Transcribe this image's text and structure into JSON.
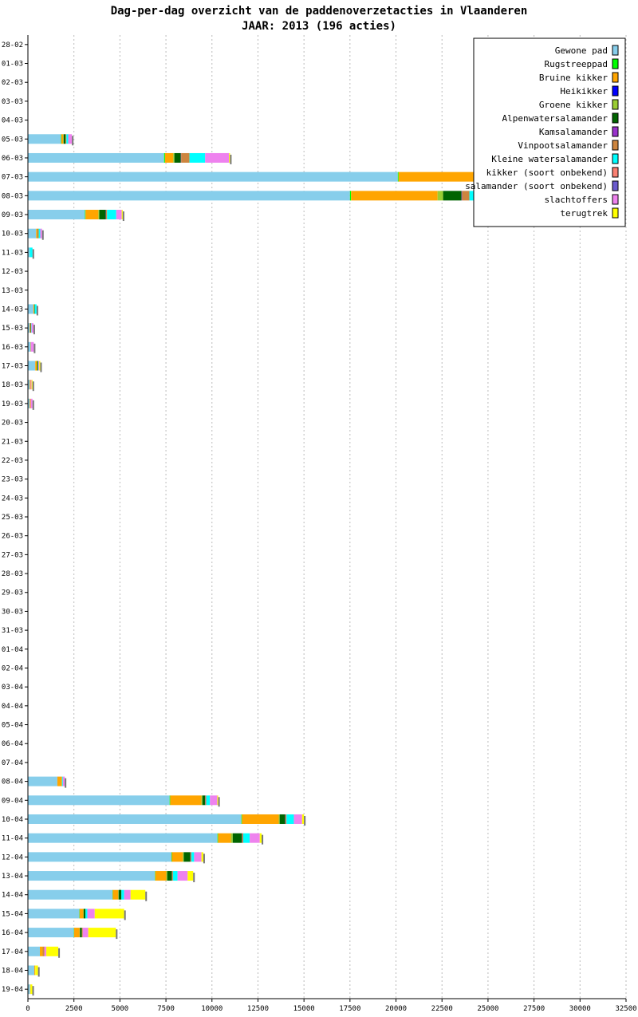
{
  "chart_data": {
    "type": "bar",
    "orientation": "horizontal",
    "stacked": true,
    "title": "Dag-per-dag overzicht van de paddenoverzetacties in Vlaanderen",
    "subtitle": "JAAR: 2013 (196 acties)",
    "xlabel": "",
    "ylabel": "",
    "xlim": [
      0,
      32500
    ],
    "x_ticks": [
      0,
      2500,
      5000,
      7500,
      10000,
      12500,
      15000,
      17500,
      20000,
      22500,
      25000,
      27500,
      30000,
      32500
    ],
    "grid": "vertical-dashed",
    "legend_position": "top-right",
    "categories": [
      "28-02",
      "01-03",
      "02-03",
      "03-03",
      "04-03",
      "05-03",
      "06-03",
      "07-03",
      "08-03",
      "09-03",
      "10-03",
      "11-03",
      "12-03",
      "13-03",
      "14-03",
      "15-03",
      "16-03",
      "17-03",
      "18-03",
      "19-03",
      "20-03",
      "21-03",
      "22-03",
      "23-03",
      "24-03",
      "25-03",
      "26-03",
      "27-03",
      "28-03",
      "29-03",
      "30-03",
      "31-03",
      "01-04",
      "02-04",
      "03-04",
      "04-04",
      "05-04",
      "06-04",
      "07-04",
      "08-04",
      "09-04",
      "10-04",
      "11-04",
      "12-04",
      "13-04",
      "14-04",
      "15-04",
      "16-04",
      "17-04",
      "18-04",
      "19-04"
    ],
    "series": [
      {
        "name": "Gewone pad",
        "color": "#87ceeb",
        "values": [
          0,
          0,
          0,
          0,
          0,
          1800,
          7400,
          20100,
          17500,
          3100,
          450,
          100,
          0,
          0,
          300,
          100,
          150,
          400,
          100,
          100,
          0,
          0,
          0,
          0,
          0,
          0,
          0,
          0,
          0,
          0,
          0,
          0,
          0,
          0,
          0,
          0,
          0,
          0,
          0,
          1600,
          7700,
          11600,
          10300,
          7800,
          6900,
          4600,
          2800,
          2500,
          650,
          350,
          120
        ]
      },
      {
        "name": "Rugstreeppad",
        "color": "#00ff00",
        "values": [
          0,
          0,
          0,
          0,
          0,
          20,
          50,
          40,
          60,
          30,
          0,
          0,
          0,
          0,
          0,
          0,
          0,
          0,
          0,
          0,
          0,
          0,
          0,
          0,
          0,
          0,
          0,
          0,
          0,
          0,
          0,
          0,
          0,
          0,
          0,
          0,
          0,
          0,
          0,
          0,
          30,
          30,
          30,
          20,
          20,
          10,
          10,
          10,
          0,
          0,
          0
        ]
      },
      {
        "name": "Bruine kikker",
        "color": "#ffa500",
        "values": [
          0,
          0,
          0,
          0,
          0,
          100,
          450,
          4700,
          4700,
          700,
          80,
          0,
          0,
          0,
          50,
          30,
          20,
          100,
          50,
          50,
          0,
          0,
          0,
          0,
          0,
          0,
          0,
          0,
          0,
          0,
          0,
          0,
          0,
          0,
          0,
          0,
          0,
          0,
          0,
          250,
          1700,
          2000,
          700,
          600,
          600,
          300,
          200,
          300,
          150,
          50,
          20
        ]
      },
      {
        "name": "Heikikker",
        "color": "#0000ff",
        "values": [
          0,
          0,
          0,
          0,
          0,
          0,
          0,
          0,
          0,
          0,
          0,
          0,
          0,
          0,
          0,
          0,
          0,
          0,
          0,
          0,
          0,
          0,
          0,
          0,
          0,
          0,
          0,
          0,
          0,
          0,
          0,
          0,
          0,
          0,
          0,
          0,
          0,
          0,
          0,
          0,
          0,
          0,
          0,
          0,
          0,
          0,
          0,
          0,
          0,
          0,
          0
        ]
      },
      {
        "name": "Groene kikker",
        "color": "#9acd32",
        "values": [
          0,
          0,
          0,
          0,
          0,
          20,
          60,
          60,
          300,
          50,
          0,
          0,
          0,
          0,
          0,
          0,
          0,
          0,
          0,
          0,
          0,
          0,
          0,
          0,
          0,
          0,
          0,
          0,
          0,
          0,
          0,
          0,
          0,
          0,
          0,
          0,
          0,
          0,
          0,
          0,
          50,
          50,
          100,
          50,
          50,
          20,
          20,
          20,
          0,
          0,
          0
        ]
      },
      {
        "name": "Alpenwatersalamander",
        "color": "#006400",
        "values": [
          0,
          0,
          0,
          0,
          0,
          100,
          350,
          600,
          1000,
          350,
          20,
          0,
          0,
          0,
          20,
          20,
          0,
          50,
          0,
          0,
          0,
          0,
          0,
          0,
          0,
          0,
          0,
          0,
          0,
          0,
          0,
          0,
          0,
          0,
          0,
          0,
          0,
          0,
          0,
          0,
          150,
          300,
          500,
          350,
          250,
          150,
          100,
          100,
          0,
          0,
          0
        ]
      },
      {
        "name": "Kamsalamander",
        "color": "#9932cc",
        "values": [
          0,
          0,
          0,
          0,
          0,
          0,
          20,
          40,
          30,
          20,
          0,
          0,
          0,
          0,
          0,
          0,
          0,
          0,
          0,
          0,
          0,
          0,
          0,
          0,
          0,
          0,
          0,
          0,
          0,
          0,
          0,
          0,
          0,
          0,
          0,
          0,
          0,
          0,
          0,
          0,
          10,
          20,
          20,
          10,
          10,
          0,
          0,
          0,
          0,
          0,
          0
        ]
      },
      {
        "name": "Vinpootsalamander",
        "color": "#cd853f",
        "values": [
          0,
          0,
          0,
          0,
          0,
          50,
          450,
          300,
          400,
          50,
          40,
          0,
          0,
          0,
          0,
          30,
          0,
          0,
          0,
          0,
          0,
          0,
          0,
          0,
          0,
          0,
          0,
          0,
          0,
          0,
          0,
          0,
          0,
          0,
          0,
          0,
          0,
          0,
          0,
          0,
          50,
          50,
          50,
          50,
          50,
          0,
          0,
          50,
          100,
          0,
          0
        ]
      },
      {
        "name": "Kleine watersalamander",
        "color": "#00ffff",
        "values": [
          0,
          0,
          0,
          0,
          0,
          100,
          850,
          1900,
          1900,
          500,
          80,
          150,
          0,
          0,
          100,
          20,
          0,
          20,
          0,
          0,
          0,
          0,
          0,
          0,
          0,
          0,
          0,
          0,
          0,
          0,
          0,
          0,
          0,
          0,
          0,
          0,
          0,
          0,
          0,
          50,
          200,
          400,
          350,
          150,
          250,
          150,
          100,
          0,
          0,
          0,
          0
        ]
      },
      {
        "name": "kikker (soort onbekend)",
        "color": "#fa8072",
        "values": [
          0,
          0,
          0,
          0,
          0,
          0,
          0,
          0,
          0,
          0,
          0,
          0,
          0,
          0,
          0,
          0,
          0,
          0,
          0,
          0,
          0,
          0,
          0,
          0,
          0,
          0,
          0,
          0,
          0,
          0,
          0,
          0,
          0,
          0,
          0,
          0,
          0,
          0,
          0,
          0,
          0,
          0,
          0,
          0,
          0,
          0,
          0,
          0,
          0,
          0,
          0
        ]
      },
      {
        "name": "salamander (soort onbekend)",
        "color": "#6a5acd",
        "values": [
          0,
          0,
          0,
          0,
          0,
          0,
          0,
          0,
          0,
          0,
          0,
          0,
          0,
          0,
          0,
          0,
          0,
          0,
          0,
          0,
          0,
          0,
          0,
          0,
          0,
          0,
          0,
          0,
          0,
          0,
          0,
          0,
          0,
          0,
          0,
          0,
          0,
          0,
          0,
          0,
          0,
          0,
          0,
          0,
          0,
          0,
          0,
          0,
          0,
          0,
          0
        ]
      },
      {
        "name": "slachtoffers",
        "color": "#ee82ee",
        "values": [
          0,
          0,
          0,
          0,
          0,
          200,
          1300,
          1100,
          1100,
          300,
          100,
          0,
          0,
          0,
          0,
          100,
          150,
          50,
          50,
          100,
          0,
          0,
          0,
          0,
          0,
          0,
          0,
          0,
          0,
          0,
          0,
          0,
          0,
          0,
          0,
          0,
          0,
          0,
          0,
          100,
          400,
          450,
          550,
          400,
          550,
          350,
          400,
          300,
          100,
          0,
          0
        ]
      },
      {
        "name": "terugtrek",
        "color": "#ffff00",
        "values": [
          0,
          0,
          0,
          0,
          0,
          0,
          50,
          0,
          0,
          50,
          0,
          0,
          0,
          0,
          0,
          0,
          0,
          50,
          50,
          0,
          0,
          0,
          0,
          0,
          0,
          0,
          0,
          0,
          0,
          0,
          0,
          0,
          0,
          0,
          0,
          0,
          0,
          0,
          0,
          0,
          50,
          100,
          100,
          100,
          300,
          800,
          1600,
          1500,
          650,
          150,
          100
        ]
      }
    ]
  }
}
